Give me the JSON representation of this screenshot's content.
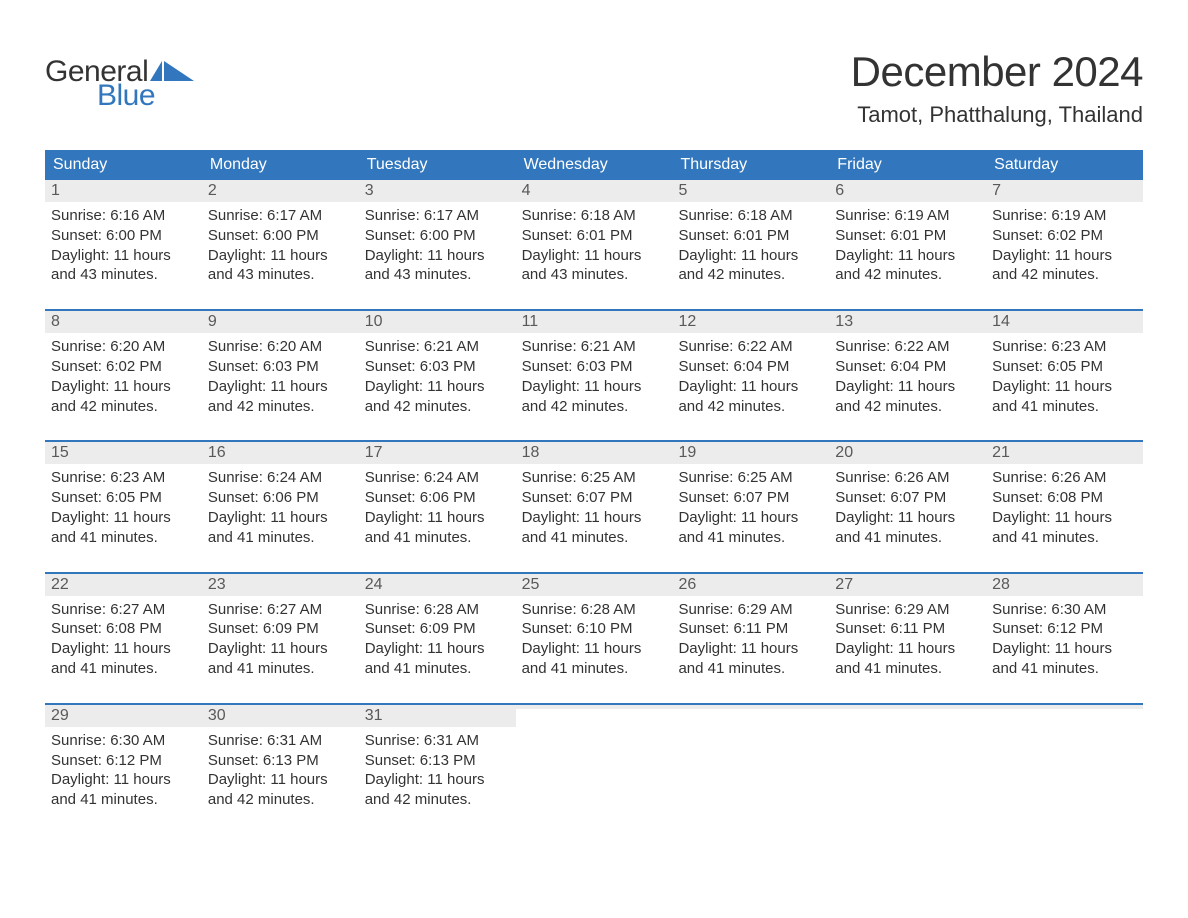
{
  "brand": {
    "word1": "General",
    "word2": "Blue",
    "word1_color": "#333333",
    "word2_color": "#3277bd",
    "icon_color": "#3277bd"
  },
  "title": "December 2024",
  "location": "Tamot, Phatthalung, Thailand",
  "colors": {
    "header_bg": "#3277bd",
    "header_text": "#ffffff",
    "daynum_bg": "#ececec",
    "daynum_text": "#595959",
    "body_text": "#333333",
    "week_divider": "#3277bd",
    "page_bg": "#ffffff"
  },
  "typography": {
    "title_fontsize": 42,
    "location_fontsize": 22,
    "dayheader_fontsize": 16,
    "daynum_fontsize": 16,
    "body_fontsize": 15,
    "logo_fontsize": 30,
    "font_family": "Arial"
  },
  "calendar": {
    "type": "table",
    "columns": [
      "Sunday",
      "Monday",
      "Tuesday",
      "Wednesday",
      "Thursday",
      "Friday",
      "Saturday"
    ],
    "weeks": [
      [
        {
          "day": "1",
          "sunrise": "Sunrise: 6:16 AM",
          "sunset": "Sunset: 6:00 PM",
          "dl1": "Daylight: 11 hours",
          "dl2": "and 43 minutes."
        },
        {
          "day": "2",
          "sunrise": "Sunrise: 6:17 AM",
          "sunset": "Sunset: 6:00 PM",
          "dl1": "Daylight: 11 hours",
          "dl2": "and 43 minutes."
        },
        {
          "day": "3",
          "sunrise": "Sunrise: 6:17 AM",
          "sunset": "Sunset: 6:00 PM",
          "dl1": "Daylight: 11 hours",
          "dl2": "and 43 minutes."
        },
        {
          "day": "4",
          "sunrise": "Sunrise: 6:18 AM",
          "sunset": "Sunset: 6:01 PM",
          "dl1": "Daylight: 11 hours",
          "dl2": "and 43 minutes."
        },
        {
          "day": "5",
          "sunrise": "Sunrise: 6:18 AM",
          "sunset": "Sunset: 6:01 PM",
          "dl1": "Daylight: 11 hours",
          "dl2": "and 42 minutes."
        },
        {
          "day": "6",
          "sunrise": "Sunrise: 6:19 AM",
          "sunset": "Sunset: 6:01 PM",
          "dl1": "Daylight: 11 hours",
          "dl2": "and 42 minutes."
        },
        {
          "day": "7",
          "sunrise": "Sunrise: 6:19 AM",
          "sunset": "Sunset: 6:02 PM",
          "dl1": "Daylight: 11 hours",
          "dl2": "and 42 minutes."
        }
      ],
      [
        {
          "day": "8",
          "sunrise": "Sunrise: 6:20 AM",
          "sunset": "Sunset: 6:02 PM",
          "dl1": "Daylight: 11 hours",
          "dl2": "and 42 minutes."
        },
        {
          "day": "9",
          "sunrise": "Sunrise: 6:20 AM",
          "sunset": "Sunset: 6:03 PM",
          "dl1": "Daylight: 11 hours",
          "dl2": "and 42 minutes."
        },
        {
          "day": "10",
          "sunrise": "Sunrise: 6:21 AM",
          "sunset": "Sunset: 6:03 PM",
          "dl1": "Daylight: 11 hours",
          "dl2": "and 42 minutes."
        },
        {
          "day": "11",
          "sunrise": "Sunrise: 6:21 AM",
          "sunset": "Sunset: 6:03 PM",
          "dl1": "Daylight: 11 hours",
          "dl2": "and 42 minutes."
        },
        {
          "day": "12",
          "sunrise": "Sunrise: 6:22 AM",
          "sunset": "Sunset: 6:04 PM",
          "dl1": "Daylight: 11 hours",
          "dl2": "and 42 minutes."
        },
        {
          "day": "13",
          "sunrise": "Sunrise: 6:22 AM",
          "sunset": "Sunset: 6:04 PM",
          "dl1": "Daylight: 11 hours",
          "dl2": "and 42 minutes."
        },
        {
          "day": "14",
          "sunrise": "Sunrise: 6:23 AM",
          "sunset": "Sunset: 6:05 PM",
          "dl1": "Daylight: 11 hours",
          "dl2": "and 41 minutes."
        }
      ],
      [
        {
          "day": "15",
          "sunrise": "Sunrise: 6:23 AM",
          "sunset": "Sunset: 6:05 PM",
          "dl1": "Daylight: 11 hours",
          "dl2": "and 41 minutes."
        },
        {
          "day": "16",
          "sunrise": "Sunrise: 6:24 AM",
          "sunset": "Sunset: 6:06 PM",
          "dl1": "Daylight: 11 hours",
          "dl2": "and 41 minutes."
        },
        {
          "day": "17",
          "sunrise": "Sunrise: 6:24 AM",
          "sunset": "Sunset: 6:06 PM",
          "dl1": "Daylight: 11 hours",
          "dl2": "and 41 minutes."
        },
        {
          "day": "18",
          "sunrise": "Sunrise: 6:25 AM",
          "sunset": "Sunset: 6:07 PM",
          "dl1": "Daylight: 11 hours",
          "dl2": "and 41 minutes."
        },
        {
          "day": "19",
          "sunrise": "Sunrise: 6:25 AM",
          "sunset": "Sunset: 6:07 PM",
          "dl1": "Daylight: 11 hours",
          "dl2": "and 41 minutes."
        },
        {
          "day": "20",
          "sunrise": "Sunrise: 6:26 AM",
          "sunset": "Sunset: 6:07 PM",
          "dl1": "Daylight: 11 hours",
          "dl2": "and 41 minutes."
        },
        {
          "day": "21",
          "sunrise": "Sunrise: 6:26 AM",
          "sunset": "Sunset: 6:08 PM",
          "dl1": "Daylight: 11 hours",
          "dl2": "and 41 minutes."
        }
      ],
      [
        {
          "day": "22",
          "sunrise": "Sunrise: 6:27 AM",
          "sunset": "Sunset: 6:08 PM",
          "dl1": "Daylight: 11 hours",
          "dl2": "and 41 minutes."
        },
        {
          "day": "23",
          "sunrise": "Sunrise: 6:27 AM",
          "sunset": "Sunset: 6:09 PM",
          "dl1": "Daylight: 11 hours",
          "dl2": "and 41 minutes."
        },
        {
          "day": "24",
          "sunrise": "Sunrise: 6:28 AM",
          "sunset": "Sunset: 6:09 PM",
          "dl1": "Daylight: 11 hours",
          "dl2": "and 41 minutes."
        },
        {
          "day": "25",
          "sunrise": "Sunrise: 6:28 AM",
          "sunset": "Sunset: 6:10 PM",
          "dl1": "Daylight: 11 hours",
          "dl2": "and 41 minutes."
        },
        {
          "day": "26",
          "sunrise": "Sunrise: 6:29 AM",
          "sunset": "Sunset: 6:11 PM",
          "dl1": "Daylight: 11 hours",
          "dl2": "and 41 minutes."
        },
        {
          "day": "27",
          "sunrise": "Sunrise: 6:29 AM",
          "sunset": "Sunset: 6:11 PM",
          "dl1": "Daylight: 11 hours",
          "dl2": "and 41 minutes."
        },
        {
          "day": "28",
          "sunrise": "Sunrise: 6:30 AM",
          "sunset": "Sunset: 6:12 PM",
          "dl1": "Daylight: 11 hours",
          "dl2": "and 41 minutes."
        }
      ],
      [
        {
          "day": "29",
          "sunrise": "Sunrise: 6:30 AM",
          "sunset": "Sunset: 6:12 PM",
          "dl1": "Daylight: 11 hours",
          "dl2": "and 41 minutes."
        },
        {
          "day": "30",
          "sunrise": "Sunrise: 6:31 AM",
          "sunset": "Sunset: 6:13 PM",
          "dl1": "Daylight: 11 hours",
          "dl2": "and 42 minutes."
        },
        {
          "day": "31",
          "sunrise": "Sunrise: 6:31 AM",
          "sunset": "Sunset: 6:13 PM",
          "dl1": "Daylight: 11 hours",
          "dl2": "and 42 minutes."
        },
        {
          "empty": true
        },
        {
          "empty": true
        },
        {
          "empty": true
        },
        {
          "empty": true
        }
      ]
    ]
  }
}
